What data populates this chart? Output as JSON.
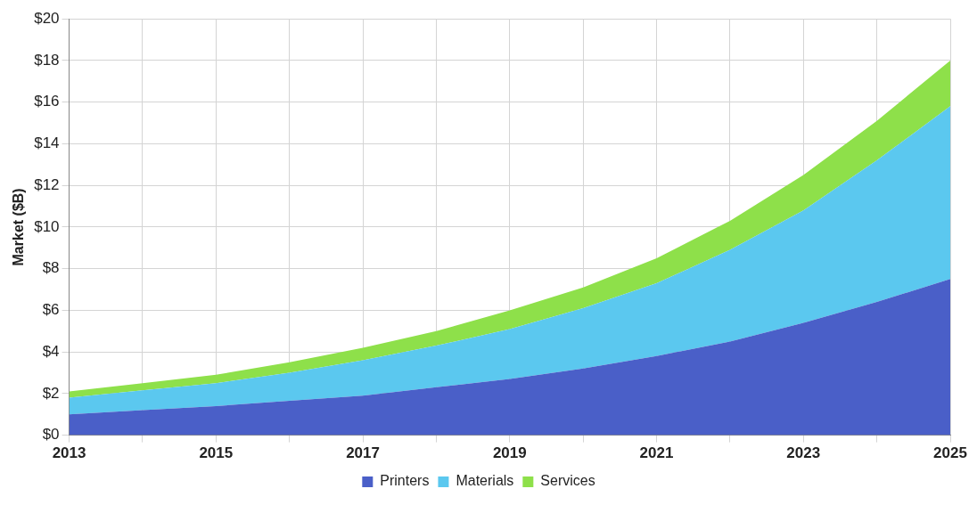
{
  "chart_data": {
    "type": "area",
    "stacked": true,
    "ylabel": "Market ($B)",
    "x": [
      2013,
      2014,
      2015,
      2016,
      2017,
      2018,
      2019,
      2020,
      2021,
      2022,
      2023,
      2024,
      2025
    ],
    "series": [
      {
        "name": "Printers",
        "color": "#4a5fc8",
        "values": [
          1.0,
          1.2,
          1.4,
          1.65,
          1.9,
          2.3,
          2.7,
          3.2,
          3.8,
          4.5,
          5.4,
          6.4,
          7.5
        ]
      },
      {
        "name": "Materials",
        "color": "#5bc8ef",
        "values": [
          0.8,
          0.95,
          1.1,
          1.35,
          1.7,
          2.0,
          2.4,
          2.9,
          3.5,
          4.4,
          5.4,
          6.8,
          8.3
        ]
      },
      {
        "name": "Services",
        "color": "#8ee04a",
        "values": [
          0.3,
          0.35,
          0.4,
          0.5,
          0.6,
          0.7,
          0.9,
          1.0,
          1.2,
          1.4,
          1.7,
          1.9,
          2.2
        ]
      }
    ],
    "xlim": [
      2013,
      2025
    ],
    "xticks": [
      2013,
      {
        "value": 2014,
        "label": null
      },
      2015,
      {
        "value": 2016,
        "label": null
      },
      2017,
      {
        "value": 2018,
        "label": null
      },
      2019,
      {
        "value": 2020,
        "label": null
      },
      2021,
      {
        "value": 2022,
        "label": null
      },
      2023,
      {
        "value": 2024,
        "label": null
      },
      2025
    ],
    "ylim": [
      0,
      20
    ],
    "yticks": [
      {
        "value": 0,
        "label": "$0"
      },
      {
        "value": 2,
        "label": "$2"
      },
      {
        "value": 4,
        "label": "$4"
      },
      {
        "value": 6,
        "label": "$6"
      },
      {
        "value": 8,
        "label": "$8"
      },
      {
        "value": 10,
        "label": "$10"
      },
      {
        "value": 12,
        "label": "$12"
      },
      {
        "value": 14,
        "label": "$14"
      },
      {
        "value": 16,
        "label": "$16"
      },
      {
        "value": 18,
        "label": "$18"
      },
      {
        "value": 20,
        "label": "$20"
      }
    ],
    "grid": true,
    "legend": "bottom"
  }
}
